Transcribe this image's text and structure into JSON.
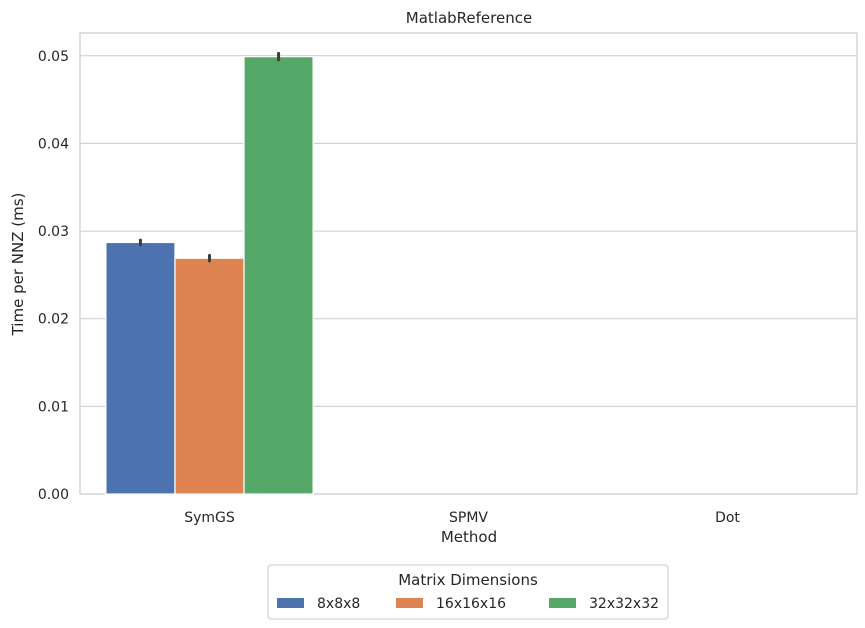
{
  "chart_data": {
    "type": "bar",
    "title": "MatlabReference",
    "xlabel": "Method",
    "ylabel": "Time per NNZ (ms)",
    "categories": [
      "SymGS",
      "SPMV",
      "Dot"
    ],
    "ylim": [
      0,
      0.0526
    ],
    "yticks": [
      "0.00",
      "0.01",
      "0.02",
      "0.03",
      "0.04",
      "0.05"
    ],
    "grid": true,
    "legend": {
      "title": "Matrix Dimensions",
      "placement": "bottom-center, outside",
      "ncol": 3
    },
    "series": [
      {
        "name": "8x8x8",
        "color": "#4c72b0",
        "values": [
          0.0287,
          0,
          0
        ],
        "err": [
          0.0001,
          0,
          0
        ]
      },
      {
        "name": "16x16x16",
        "color": "#dd8452",
        "values": [
          0.0269,
          0,
          0
        ],
        "err": [
          0.00015,
          0,
          0
        ]
      },
      {
        "name": "32x32x32",
        "color": "#55a868",
        "values": [
          0.0499,
          0,
          0
        ],
        "err": [
          0.0002,
          0,
          0
        ]
      }
    ]
  }
}
